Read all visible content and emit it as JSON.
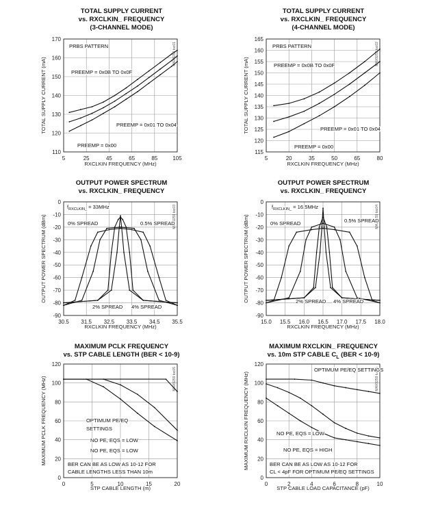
{
  "charts": [
    {
      "id": "c1",
      "title1": "TOTAL SUPPLY CURRENT",
      "title2": "vs. RXCLKIN_ FREQUENCY",
      "title3": "(3-CHANNEL MODE)",
      "code": "MAX9259 toc01"
    },
    {
      "id": "c2",
      "title1": "TOTAL SUPPLY CURRENT",
      "title2": "vs. RXCLKIN_ FREQUENCY",
      "title3": "(4-CHANNEL MODE)",
      "code": "MAX9259 toc02"
    },
    {
      "id": "c3",
      "title1": "OUTPUT POWER SPECTRUM",
      "title2": "vs. RXCLKIN_ FREQUENCY",
      "title3": "",
      "code": "MAX9259 toc03"
    },
    {
      "id": "c4",
      "title1": "OUTPUT POWER SPECTRUM",
      "title2": "vs. RXCLKIN_ FREQUENCY",
      "title3": "",
      "code": "MAX9259 toc04"
    },
    {
      "id": "c5",
      "title1": "MAXIMUM PCLK FREQUENCY",
      "title2": "vs. STP CABLE LENGTH (BER < 10-9)",
      "title3": "",
      "code": "MAX9259 toc05"
    },
    {
      "id": "c6",
      "title1": "MAXIMUM RXCLKIN_ FREQUENCY",
      "title2": "vs. 10m STP CABLE C",
      "title2_sub": "L",
      "title2_tail": " (BER < 10-9)",
      "title3": "",
      "code": "MAX9259 toc06"
    }
  ],
  "chart_data": [
    {
      "type": "line",
      "title": "TOTAL SUPPLY CURRENT vs. RXCLKIN_ FREQUENCY (3-CHANNEL MODE)",
      "xlabel": "RXCLKIN FREQUENCY (MHz)",
      "ylabel": "TOTAL SUPPLY CURRENT (mA)",
      "xlim": [
        5,
        105
      ],
      "ylim": [
        110,
        170
      ],
      "xticks": [
        5,
        25,
        45,
        65,
        85,
        105
      ],
      "yticks": [
        110,
        120,
        130,
        140,
        150,
        160,
        170
      ],
      "grid": true,
      "annotations": [
        "PRBS PATTERN",
        "PREEMP = 0x0B TO 0x0F",
        "PREEMP = 0x01 TO 0x04",
        "PREEMP = 0x00"
      ],
      "series": [
        {
          "name": "PREEMP = 0x0B TO 0x0F",
          "x": [
            10,
            20,
            30,
            40,
            50,
            60,
            70,
            80,
            90,
            100,
            105
          ],
          "y": [
            131,
            132.5,
            134,
            136.5,
            140,
            144,
            148.5,
            153,
            157.5,
            162,
            164
          ]
        },
        {
          "name": "PREEMP = 0x01 TO 0x04",
          "x": [
            10,
            20,
            30,
            40,
            50,
            60,
            70,
            80,
            90,
            100,
            105
          ],
          "y": [
            126,
            128,
            130.5,
            133.5,
            137,
            141,
            145,
            149.5,
            154,
            158.5,
            161
          ]
        },
        {
          "name": "PREEMP = 0x00",
          "x": [
            10,
            20,
            30,
            40,
            50,
            60,
            70,
            80,
            90,
            100,
            105
          ],
          "y": [
            121,
            124,
            127,
            130.5,
            134,
            138,
            142,
            146.5,
            151,
            155.5,
            158
          ]
        }
      ]
    },
    {
      "type": "line",
      "title": "TOTAL SUPPLY CURRENT vs. RXCLKIN_ FREQUENCY (4-CHANNEL MODE)",
      "xlabel": "RXCLKIN FREQUENCY (MHz)",
      "ylabel": "TOTAL SUPPLY CURRENT (mA)",
      "xlim": [
        5,
        80
      ],
      "ylim": [
        115,
        165
      ],
      "xticks": [
        5,
        20,
        35,
        50,
        65,
        80
      ],
      "yticks": [
        115,
        120,
        125,
        130,
        135,
        140,
        145,
        150,
        155,
        160,
        165
      ],
      "grid": true,
      "annotations": [
        "PRBS PATTERN",
        "PREEMP = 0x0B TO 0x0F",
        "PREEMP = 0x01 TO 0x04",
        "PREEMP = 0x00"
      ],
      "series": [
        {
          "name": "PREEMP = 0x0B TO 0x0F",
          "x": [
            10,
            20,
            30,
            40,
            50,
            60,
            70,
            80
          ],
          "y": [
            135.5,
            136.5,
            138.5,
            141.5,
            145.5,
            150,
            155,
            160.5
          ]
        },
        {
          "name": "PREEMP = 0x01 TO 0x04",
          "x": [
            10,
            20,
            30,
            40,
            50,
            60,
            70,
            80
          ],
          "y": [
            128.5,
            130.5,
            133,
            136.5,
            140.5,
            145,
            150,
            155
          ]
        },
        {
          "name": "PREEMP = 0x00",
          "x": [
            10,
            20,
            30,
            40,
            50,
            60,
            70,
            80
          ],
          "y": [
            121.5,
            124,
            127.5,
            131,
            135,
            139.5,
            144.5,
            150
          ]
        }
      ]
    },
    {
      "type": "line",
      "title": "OUTPUT POWER SPECTRUM vs. RXCLKIN_ FREQUENCY",
      "xlabel": "RXCLKIN FREQUENCY (MHz)",
      "ylabel": "OUTPUT POWER SPECTRUM (dBm)",
      "xlim": [
        30.5,
        35.5
      ],
      "ylim": [
        -90,
        0
      ],
      "xticks": [
        30.5,
        31.5,
        32.5,
        33.5,
        34.5,
        35.5
      ],
      "yticks": [
        0,
        -10,
        -20,
        -30,
        -40,
        -50,
        -60,
        -70,
        -80,
        -90
      ],
      "grid": true,
      "annotation_freq": "f",
      "annotation_freq_sub": "RXCLKIN_",
      "annotation_freq_tail": " = 33MHz",
      "annotations": [
        "0% SPREAD",
        "0.5% SPREAD",
        "2% SPREAD",
        "4% SPREAD"
      ],
      "series": [
        {
          "name": "0% SPREAD",
          "x": [
            30.5,
            32.0,
            32.6,
            32.85,
            32.95,
            33.0,
            33.05,
            33.15,
            33.4,
            34.0,
            35.5
          ],
          "y": [
            -80,
            -78,
            -70,
            -40,
            -20,
            -11,
            -20,
            -40,
            -70,
            -78,
            -80
          ]
        },
        {
          "name": "0.5% SPREAD",
          "x": [
            30.5,
            32.0,
            32.45,
            32.6,
            32.75,
            32.9,
            33.0,
            33.1,
            33.25,
            33.4,
            33.55,
            34.0,
            35.5
          ],
          "y": [
            -80,
            -78,
            -70,
            -40,
            -20,
            -14,
            -12,
            -14,
            -20,
            -40,
            -70,
            -78,
            -80
          ]
        },
        {
          "name": "2% SPREAD",
          "x": [
            30.5,
            31.3,
            31.8,
            32.1,
            32.4,
            33.0,
            33.6,
            33.9,
            34.2,
            34.7,
            35.5
          ],
          "y": [
            -82,
            -78,
            -55,
            -30,
            -21,
            -20,
            -21,
            -30,
            -55,
            -78,
            -82
          ]
        },
        {
          "name": "4% SPREAD",
          "x": [
            30.5,
            31.0,
            31.3,
            31.7,
            32.0,
            32.5,
            33.0,
            33.5,
            34.0,
            34.3,
            34.7,
            35.0,
            35.5
          ],
          "y": [
            -82,
            -78,
            -60,
            -35,
            -24,
            -22,
            -21,
            -22,
            -24,
            -35,
            -60,
            -78,
            -82
          ]
        }
      ]
    },
    {
      "type": "line",
      "title": "OUTPUT POWER SPECTRUM vs. RXCLKIN_ FREQUENCY",
      "xlabel": "RXCLKIN FREQUENCY (MHz)",
      "ylabel": "OUTPUT POWER SPECTRUM (dBm)",
      "xlim": [
        15.0,
        18.0
      ],
      "ylim": [
        -90,
        0
      ],
      "xticks": [
        15.0,
        15.5,
        16.0,
        16.5,
        17.0,
        17.5,
        18.0
      ],
      "yticks": [
        0,
        -10,
        -20,
        -30,
        -40,
        -50,
        -60,
        -70,
        -80,
        -90
      ],
      "grid": true,
      "annotation_freq": "f",
      "annotation_freq_sub": "RXCLKIN_",
      "annotation_freq_tail": " = 16.5MHz",
      "annotations": [
        "0% SPREAD",
        "0.5% SPREAD",
        "2% SPREAD",
        "4% SPREAD"
      ],
      "series": [
        {
          "name": "0% SPREAD",
          "x": [
            15.0,
            16.0,
            16.3,
            16.42,
            16.47,
            16.5,
            16.53,
            16.58,
            16.7,
            17.0,
            18.0
          ],
          "y": [
            -78,
            -76,
            -68,
            -40,
            -20,
            -5,
            -20,
            -40,
            -68,
            -76,
            -78
          ]
        },
        {
          "name": "0.5% SPREAD",
          "x": [
            15.0,
            16.0,
            16.25,
            16.33,
            16.4,
            16.5,
            16.6,
            16.67,
            16.75,
            17.0,
            18.0
          ],
          "y": [
            -78,
            -76,
            -68,
            -40,
            -20,
            -12,
            -20,
            -40,
            -68,
            -76,
            -78
          ]
        },
        {
          "name": "2% SPREAD",
          "x": [
            15.0,
            15.6,
            15.9,
            16.05,
            16.2,
            16.5,
            16.8,
            16.95,
            17.1,
            17.4,
            18.0
          ],
          "y": [
            -80,
            -76,
            -55,
            -30,
            -20,
            -17,
            -20,
            -30,
            -55,
            -76,
            -80
          ]
        },
        {
          "name": "4% SPREAD",
          "x": [
            15.0,
            15.2,
            15.4,
            15.6,
            15.8,
            16.2,
            16.5,
            16.8,
            17.2,
            17.4,
            17.6,
            17.8,
            18.0
          ],
          "y": [
            -80,
            -78,
            -60,
            -35,
            -24,
            -22,
            -21,
            -22,
            -24,
            -35,
            -60,
            -78,
            -80
          ]
        }
      ]
    },
    {
      "type": "line",
      "title": "MAXIMUM PCLK FREQUENCY vs. STP CABLE LENGTH (BER < 10-9)",
      "xlabel": "STP CABLE LENGTH (m)",
      "ylabel": "MAXIMUM PCLK FREQUENCY (MHz)",
      "xlim": [
        0,
        20
      ],
      "ylim": [
        0,
        120
      ],
      "xticks": [
        0,
        5,
        10,
        15,
        20
      ],
      "yticks": [
        0,
        20,
        40,
        60,
        80,
        100,
        120
      ],
      "grid": true,
      "annotations": [
        "OPTIMUM PE/EQ",
        "SETTINGS",
        "NO PE, EQS = LOW",
        "NO PE, EQS = LOW",
        "BER CAN BE AS LOW AS 10-12 FOR",
        "CABLE LENGTHS LESS THAN 10m"
      ],
      "series": [
        {
          "name": "OPTIMUM PE/EQ SETTINGS",
          "x": [
            0,
            18,
            20
          ],
          "y": [
            104,
            104,
            91
          ]
        },
        {
          "name": "NO PE, EQS = LOW",
          "x": [
            0,
            7,
            10,
            13,
            16,
            20
          ],
          "y": [
            104,
            104,
            98,
            88,
            74,
            50
          ]
        },
        {
          "name": "NO PE, EQS = LOW",
          "x": [
            0,
            4,
            7,
            10,
            13,
            16,
            20
          ],
          "y": [
            104,
            104,
            96,
            83,
            68,
            54,
            39
          ]
        }
      ]
    },
    {
      "type": "line",
      "title": "MAXIMUM RXCLKIN_ FREQUENCY vs. 10m STP CABLE CL (BER < 10-9)",
      "xlabel": "STP CABLE LOAD CAPACITANCE (pF)",
      "ylabel": "MAXIMUM RXCLKIN FREQUENCY (MHz)",
      "xlim": [
        0,
        10
      ],
      "ylim": [
        0,
        120
      ],
      "xticks": [
        0,
        2,
        4,
        6,
        8,
        10
      ],
      "yticks": [
        0,
        20,
        40,
        60,
        80,
        100,
        120
      ],
      "grid": true,
      "annotations": [
        "OPTIMUM PE/EQ SETTINGS",
        "NO PE, EQS = LOW",
        "NO PE, EQS = HIGH",
        "BER CAN BE AS LOW AS 10-12 FOR",
        "CL < 4pF FOR OPTIMUM PE/EQ SETTINGS"
      ],
      "series": [
        {
          "name": "OPTIMUM PE/EQ SETTINGS",
          "x": [
            0,
            2.5,
            4,
            5,
            6,
            7,
            8,
            9,
            10
          ],
          "y": [
            104,
            104,
            103,
            100,
            97,
            95,
            93,
            91,
            89
          ]
        },
        {
          "name": "NO PE, EQS = LOW",
          "x": [
            0,
            1,
            2,
            3,
            4,
            5,
            6,
            7,
            8,
            9,
            10
          ],
          "y": [
            99,
            95,
            90,
            84,
            76,
            67,
            58,
            52,
            47,
            44,
            42
          ]
        },
        {
          "name": "NO PE, EQS = HIGH",
          "x": [
            0,
            1,
            2,
            3,
            4,
            5,
            6,
            7,
            8,
            9,
            10
          ],
          "y": [
            84,
            76,
            68,
            60,
            53,
            47,
            42,
            40,
            38,
            36,
            34
          ]
        }
      ]
    }
  ]
}
